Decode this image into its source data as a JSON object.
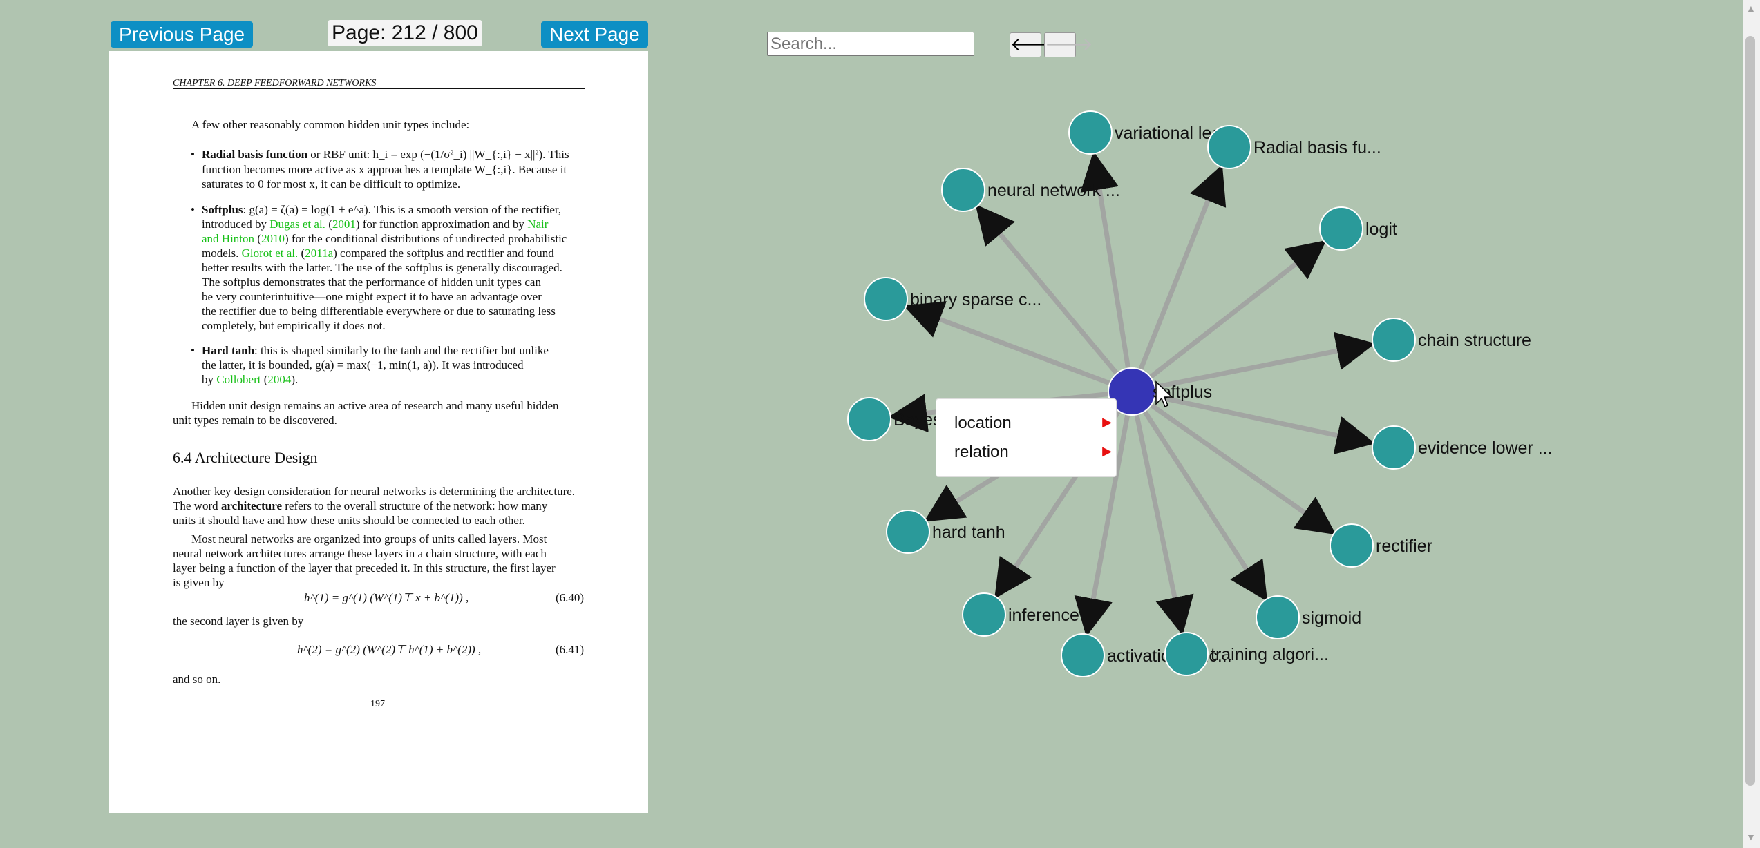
{
  "viewer": {
    "prev_label": "Previous Page",
    "page_indicator": "Page: 212 / 800",
    "next_label": "Next Page"
  },
  "pdf": {
    "running_head": "CHAPTER 6.  DEEP FEEDFORWARD NETWORKS",
    "intro": "A few other reasonably common hidden unit types include:",
    "b1_term": "Radial basis function",
    "b1_l1": " or RBF unit:  h_i = exp (−(1/σ²_i) ||W_{:,i} − x||²).  This",
    "b1_l2": "function becomes more active as x approaches a template W_{:,i}. Because it",
    "b1_l3": "saturates to 0 for most x, it can be difficult to optimize.",
    "b2_term": "Softplus",
    "b2_l1": ": g(a) = ζ(a) = log(1 + e^a).  This is a smooth version of the rectifier,",
    "b2_l2a": "introduced by ",
    "b2_l2_cite1": "Dugas et al.",
    "b2_l2b": " (",
    "b2_l2_cite1y": "2001",
    "b2_l2c": ") for function approximation and by ",
    "b2_l2_cite2": "Nair",
    "b2_l3_cite2": "and Hinton",
    "b2_l3a": " (",
    "b2_l3_cite2y": "2010",
    "b2_l3b": ") for the conditional distributions of undirected probabilistic",
    "b2_l4a": "models.  ",
    "b2_l4_cite3": "Glorot et al.",
    "b2_l4b": " (",
    "b2_l4_cite3y": "2011a",
    "b2_l4c": ") compared the softplus and rectifier and found",
    "b2_l5": "better results with the latter. The use of the softplus is generally discouraged.",
    "b2_l6": "The softplus demonstrates that the performance of hidden unit types can",
    "b2_l7": "be very counterintuitive—one might expect it to have an advantage over",
    "b2_l8": "the rectifier due to being differentiable everywhere or due to saturating less",
    "b2_l9": "completely, but empirically it does not.",
    "b3_term": "Hard tanh",
    "b3_l1": ": this is shaped similarly to the tanh and the rectifier but unlike",
    "b3_l2": "the latter, it is bounded, g(a) = max(−1, min(1, a)).  It was introduced",
    "b3_l3a": "by ",
    "b3_l3_cite": "Collobert",
    "b3_l3b": " (",
    "b3_l3_citey": "2004",
    "b3_l3c": ").",
    "p1_l1": "Hidden unit design remains an active area of research and many useful hidden",
    "p1_l2": "unit types remain to be discovered.",
    "section": "6.4    Architecture Design",
    "p2_l1": "Another key design consideration for neural networks is determining the architecture.",
    "p2_l2a": "The word ",
    "p2_l2_bold": "architecture",
    "p2_l2b": " refers to the overall structure of the network: how many",
    "p2_l3": "units it should have and how these units should be connected to each other.",
    "p3_l1": "Most neural networks are organized into groups of units called layers.  Most",
    "p3_l2": "neural network architectures arrange these layers in a chain structure, with each",
    "p3_l3": "layer being a function of the layer that preceded it.  In this structure, the first layer",
    "p3_l4": "is given by",
    "eq1": "h^(1) = g^(1) (W^(1)⊤ x + b^(1)) ,",
    "eq1_num": "(6.40)",
    "p4": "the second layer is given by",
    "eq2": "h^(2) = g^(2) (W^(2)⊤ h^(1) + b^(2)) ,",
    "eq2_num": "(6.41)",
    "p5": "and so on.",
    "page_number": "197"
  },
  "graph": {
    "search_placeholder": "Search...",
    "back_icon": "left-arrow-icon",
    "forward_icon": "right-arrow-icon",
    "center": "softplus",
    "center_color": "#3535b5",
    "node_color": "#2a9a9a",
    "edge_color": "#a0a0a0",
    "nodes": [
      {
        "label": "variational lea..."
      },
      {
        "label": "Radial basis fu..."
      },
      {
        "label": "neural network ..."
      },
      {
        "label": "logit"
      },
      {
        "label": "binary sparse c..."
      },
      {
        "label": "chain structure"
      },
      {
        "label": "Bayes"
      },
      {
        "label": "evidence lower ..."
      },
      {
        "label": "hard tanh"
      },
      {
        "label": "rectifier"
      },
      {
        "label": "inference"
      },
      {
        "label": "sigmoid"
      },
      {
        "label": "activation func..."
      },
      {
        "label": "training algori..."
      }
    ]
  },
  "context_menu": {
    "items": [
      {
        "label": "location"
      },
      {
        "label": "relation"
      }
    ]
  }
}
